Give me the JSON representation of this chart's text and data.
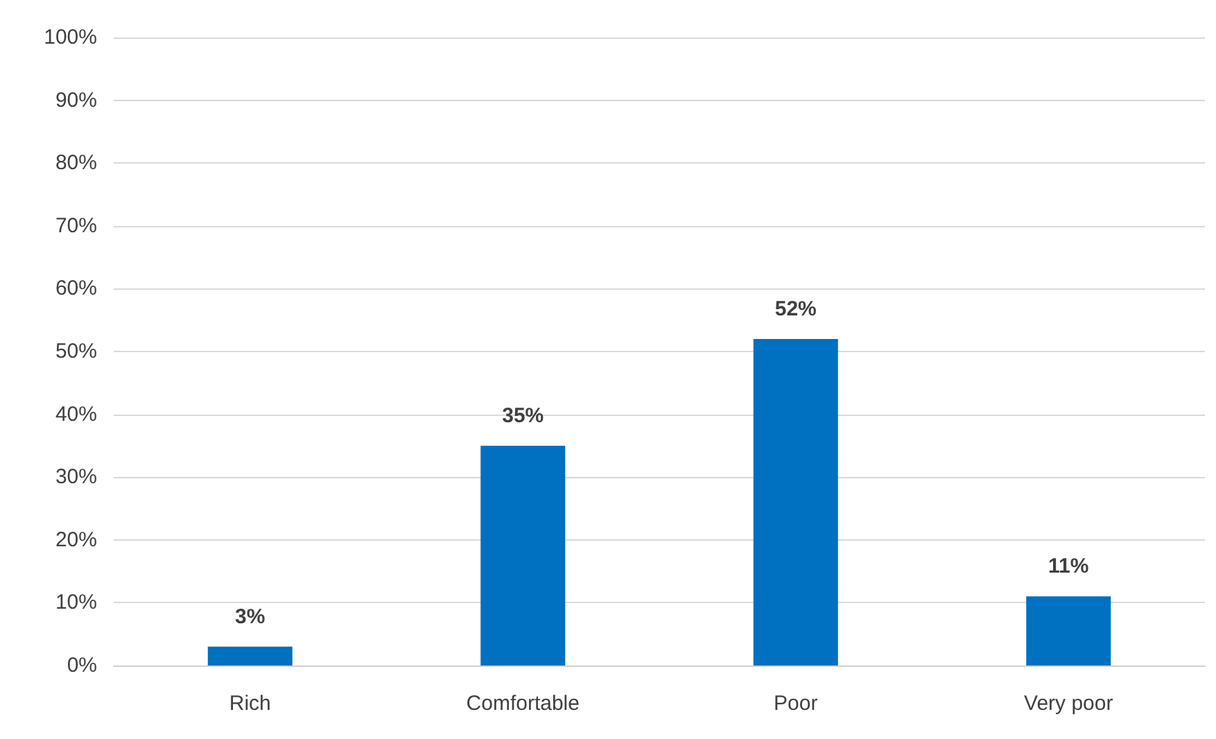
{
  "chart_data": {
    "type": "bar",
    "categories": [
      "Rich",
      "Comfortable",
      "Poor",
      "Very poor"
    ],
    "values": [
      3,
      35,
      52,
      11
    ],
    "color": "#0070c0",
    "value_labels": [
      "3%",
      "35%",
      "52%",
      "11%"
    ],
    "ylim": [
      0,
      100
    ],
    "yticks": [
      {
        "value": 0,
        "label": "0%"
      },
      {
        "value": 10,
        "label": "10%"
      },
      {
        "value": 20,
        "label": "20%"
      },
      {
        "value": 30,
        "label": "30%"
      },
      {
        "value": 40,
        "label": "40%"
      },
      {
        "value": 50,
        "label": "50%"
      },
      {
        "value": 60,
        "label": "60%"
      },
      {
        "value": 70,
        "label": "70%"
      },
      {
        "value": 80,
        "label": "80%"
      },
      {
        "value": 90,
        "label": "90%"
      },
      {
        "value": 100,
        "label": "100%"
      }
    ],
    "grid": true
  }
}
